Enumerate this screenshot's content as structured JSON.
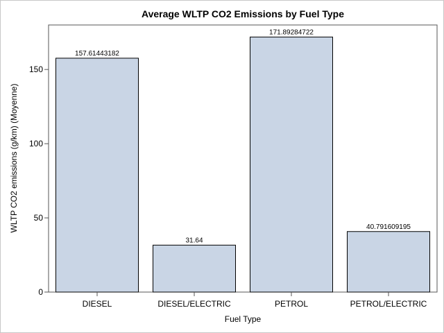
{
  "chart_data": {
    "type": "bar",
    "title": "Average WLTP CO2 Emissions by Fuel Type",
    "xlabel": "Fuel Type",
    "ylabel": "WLTP CO2 emissions (g/km) (Moyenne)",
    "categories": [
      "DIESEL",
      "DIESEL/ELECTRIC",
      "PETROL",
      "PETROL/ELECTRIC"
    ],
    "values": [
      157.61443182,
      31.64,
      171.89284722,
      40.791609195
    ],
    "value_labels": [
      "157.61443182",
      "31.64",
      "171.89284722",
      "40.791609195"
    ],
    "ylim": [
      0,
      180
    ],
    "yticks": [
      0,
      50,
      100,
      150
    ],
    "grid": false,
    "legend": "none",
    "colors": {
      "bar_fill": "#c9d5e5",
      "bar_stroke": "#000000",
      "axis": "#555555"
    }
  }
}
